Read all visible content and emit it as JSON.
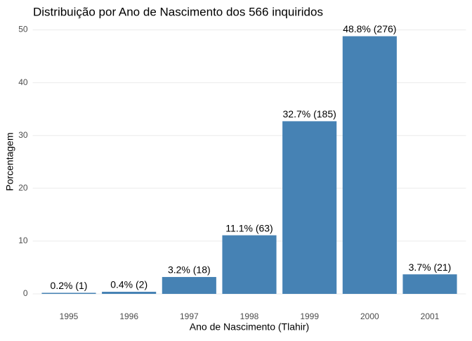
{
  "chart_data": {
    "type": "bar",
    "title": "Distribuição por Ano de Nascimento dos 566 inquiridos",
    "x_label": "Ano de Nascimento (Tlahir)",
    "y_label": "Porcentagem",
    "categories": [
      "1995",
      "1996",
      "1997",
      "1998",
      "1999",
      "2000",
      "2001"
    ],
    "values": [
      0.2,
      0.4,
      3.2,
      11.1,
      32.7,
      48.8,
      3.7
    ],
    "value_labels": [
      "0.2% (1)",
      "0.4% (2)",
      "3.2% (18)",
      "11.1% (63)",
      "32.7% (185)",
      "48.8% (276)",
      "3.7% (21)"
    ],
    "color": "#4682b4",
    "ylim": [
      -1.6,
      51
    ],
    "yticks": [
      0,
      10,
      20,
      30,
      40,
      50
    ],
    "grid": true
  }
}
